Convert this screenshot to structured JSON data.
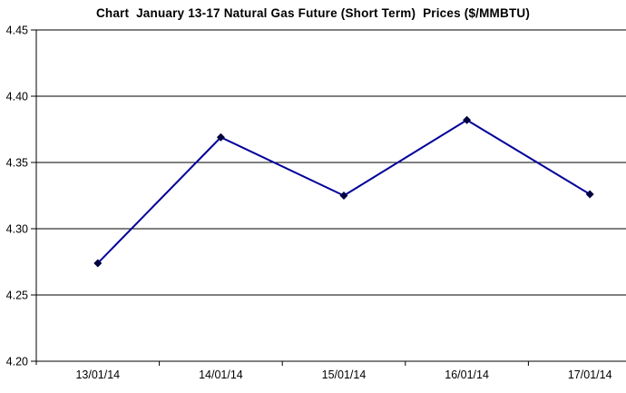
{
  "chart_data": {
    "type": "line",
    "title": "Chart  January 13-17 Natural Gas Future (Short Term)  Prices ($/MMBTU)",
    "categories": [
      "13/01/14",
      "14/01/14",
      "15/01/14",
      "16/01/14",
      "17/01/14"
    ],
    "series": [
      {
        "name": "Natural Gas Future (Short Term) Price",
        "values": [
          4.274,
          4.369,
          4.325,
          4.382,
          4.326
        ]
      }
    ],
    "xlabel": "",
    "ylabel": "",
    "ylim": [
      4.2,
      4.45
    ],
    "ytick_step": 0.05,
    "yticks": [
      "4.45",
      "4.40",
      "4.35",
      "4.30",
      "4.25",
      "4.20"
    ],
    "grid": true,
    "legend_position": "none",
    "marker": "diamond",
    "colors": {
      "line": "#000099",
      "marker": "#000040",
      "gridline": "#000000",
      "axis": "#000000",
      "text": "#000000",
      "background": "#ffffff"
    }
  }
}
